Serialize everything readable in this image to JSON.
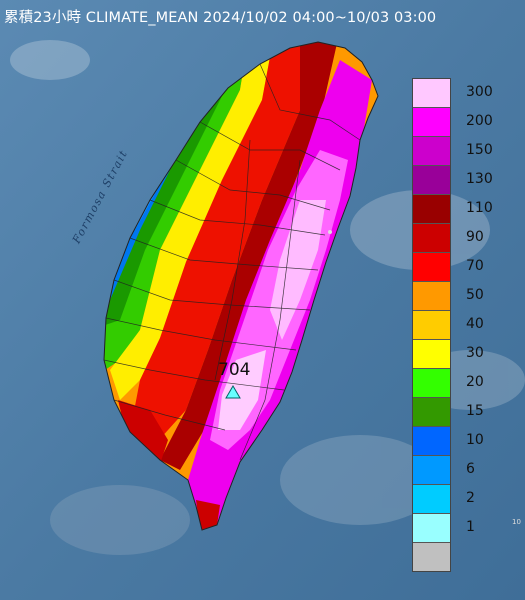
{
  "title": "累積23小時 CLIMATE_MEAN 2024/10/02 04:00~10/03 03:00",
  "strait_label": "Formosa Strait",
  "peak_label": "704",
  "legend": [
    {
      "label": "300",
      "color": "#ffc8ff"
    },
    {
      "label": "200",
      "color": "#ff00ff"
    },
    {
      "label": "150",
      "color": "#cc00cc"
    },
    {
      "label": "130",
      "color": "#990099"
    },
    {
      "label": "110",
      "color": "#990000"
    },
    {
      "label": "90",
      "color": "#cc0000"
    },
    {
      "label": "70",
      "color": "#ff0000"
    },
    {
      "label": "50",
      "color": "#ff9900"
    },
    {
      "label": "40",
      "color": "#ffcc00"
    },
    {
      "label": "30",
      "color": "#ffff00"
    },
    {
      "label": "20",
      "color": "#33ff00"
    },
    {
      "label": "15",
      "color": "#339900"
    },
    {
      "label": "10",
      "color": "#0066ff"
    },
    {
      "label": "6",
      "color": "#0099ff"
    },
    {
      "label": "2",
      "color": "#00ccff"
    },
    {
      "label": "1",
      "color": "#99ffff"
    },
    {
      "label": "",
      "color": "#c0c0c0"
    }
  ],
  "corner_mark": "10"
}
